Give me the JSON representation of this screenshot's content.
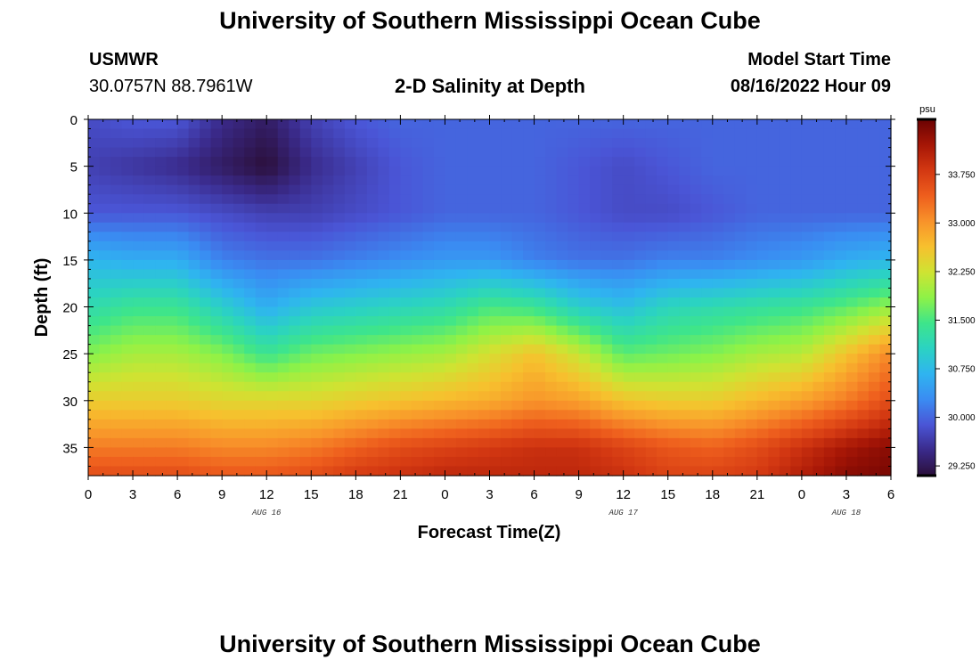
{
  "header": {
    "title": "University of Southern Mississippi Ocean Cube",
    "station": "USMWR",
    "coords": "30.0757N  88.7961W",
    "plot_title": "2-D Salinity at Depth",
    "model_label": "Model Start Time",
    "model_time": "08/16/2022 Hour 09"
  },
  "footer": {
    "title": "University of Southern Mississippi Ocean Cube"
  },
  "colors": {
    "colormap": [
      "#2b0f3a",
      "#3a2a8a",
      "#4a55d6",
      "#3a8cf2",
      "#2fb4f0",
      "#2bd3c2",
      "#3ee58a",
      "#8ef247",
      "#cfe332",
      "#f7c02e",
      "#f8922a",
      "#ee5e1d",
      "#d33812",
      "#a61606",
      "#6a0202"
    ]
  },
  "chart_data": {
    "type": "heatmap",
    "xlabel": "Forecast Time(Z)",
    "ylabel": "Depth (ft)",
    "x_range_hours": [
      0,
      54
    ],
    "ylim": [
      38,
      0
    ],
    "x_tick_labels": [
      "0",
      "3",
      "6",
      "9",
      "12",
      "15",
      "18",
      "21",
      "0",
      "3",
      "6",
      "9",
      "12",
      "15",
      "18",
      "21",
      "0",
      "3",
      "6"
    ],
    "y_ticks": [
      0,
      5,
      10,
      15,
      20,
      25,
      30,
      35
    ],
    "date_labels": [
      {
        "label": "AUG 16",
        "hour": 12
      },
      {
        "label": "AUG 17",
        "hour": 36
      },
      {
        "label": "AUG 18",
        "hour": 51
      }
    ],
    "colorbar": {
      "unit": "psu",
      "range": [
        29.1,
        34.6
      ],
      "tick_labels": [
        "29.250",
        "30.000",
        "30.750",
        "31.500",
        "32.250",
        "33.000",
        "33.750"
      ],
      "tick_values": [
        29.25,
        30.0,
        30.75,
        31.5,
        32.25,
        33.0,
        33.75
      ]
    },
    "grid": {
      "hours": [
        0,
        3,
        6,
        9,
        12,
        15,
        18,
        21,
        24,
        27,
        30,
        33,
        36,
        39,
        42,
        45,
        48,
        51,
        54
      ],
      "depths_ft": [
        0,
        5,
        10,
        15,
        20,
        25,
        30,
        35,
        38
      ],
      "salinity_psu": [
        [
          29.8,
          29.9,
          29.9,
          29.5,
          29.3,
          29.7,
          29.9,
          30.0,
          30.0,
          30.0,
          30.0,
          30.0,
          30.0,
          30.0,
          30.0,
          30.0,
          30.0,
          30.0,
          30.0
        ],
        [
          29.7,
          29.6,
          29.5,
          29.3,
          29.1,
          29.5,
          29.7,
          29.9,
          30.0,
          30.0,
          30.0,
          29.9,
          29.8,
          29.9,
          30.0,
          30.0,
          30.0,
          30.0,
          30.0
        ],
        [
          29.9,
          29.9,
          29.9,
          29.8,
          29.7,
          29.7,
          29.8,
          29.9,
          30.0,
          30.0,
          30.0,
          29.9,
          29.8,
          29.8,
          29.9,
          30.0,
          30.0,
          30.0,
          30.0
        ],
        [
          30.7,
          30.6,
          30.6,
          30.2,
          30.1,
          30.1,
          30.2,
          30.3,
          30.4,
          30.4,
          30.2,
          30.1,
          30.1,
          30.2,
          30.2,
          30.3,
          30.4,
          30.6,
          30.7
        ],
        [
          31.2,
          31.4,
          31.4,
          31.0,
          30.6,
          30.9,
          31.0,
          31.1,
          31.2,
          31.5,
          31.4,
          31.0,
          30.8,
          31.1,
          31.2,
          31.3,
          31.4,
          31.6,
          31.9
        ],
        [
          31.8,
          32.0,
          32.0,
          31.8,
          31.4,
          31.7,
          31.8,
          31.9,
          32.0,
          32.3,
          32.6,
          32.2,
          31.6,
          31.7,
          31.8,
          32.0,
          32.1,
          32.6,
          33.1
        ],
        [
          32.5,
          32.5,
          32.5,
          32.4,
          32.4,
          32.4,
          32.5,
          32.6,
          32.7,
          32.8,
          33.0,
          32.9,
          32.6,
          32.5,
          32.5,
          32.7,
          32.9,
          33.2,
          33.6
        ],
        [
          33.2,
          33.2,
          33.2,
          33.1,
          33.1,
          33.2,
          33.4,
          33.6,
          33.7,
          33.8,
          33.9,
          33.9,
          33.7,
          33.5,
          33.4,
          33.6,
          33.9,
          34.2,
          34.4
        ],
        [
          33.6,
          33.6,
          33.6,
          33.5,
          33.5,
          33.6,
          33.8,
          33.9,
          34.0,
          34.0,
          34.0,
          34.0,
          33.9,
          33.7,
          33.7,
          33.8,
          34.1,
          34.4,
          34.5
        ]
      ]
    }
  }
}
